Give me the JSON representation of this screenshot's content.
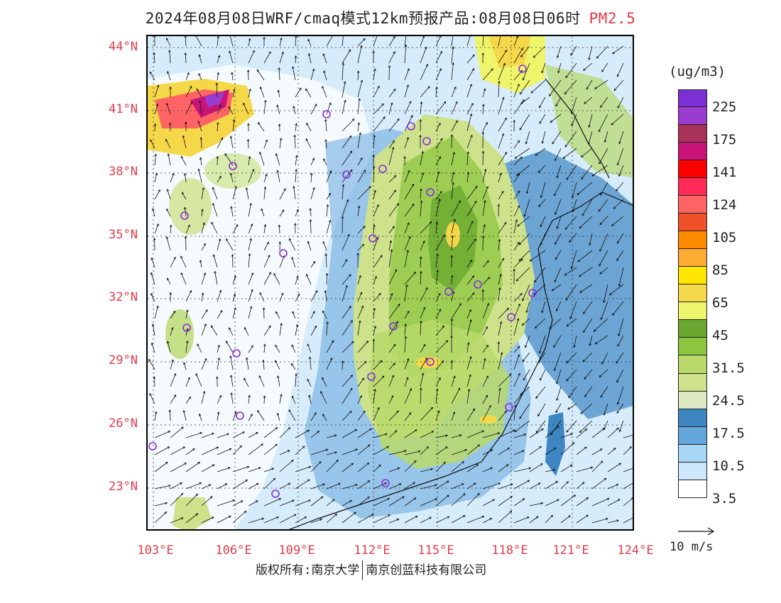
{
  "title": {
    "main": "2024年08月08日WRF/cmaq模式12km预报产品:08月08日06时",
    "species": "PM2.5"
  },
  "axes": {
    "lat_labels": [
      "44°N",
      "41°N",
      "38°N",
      "35°N",
      "32°N",
      "29°N",
      "26°N",
      "23°N"
    ],
    "lon_labels": [
      "103°E",
      "106°E",
      "109°E",
      "112°E",
      "115°E",
      "118°E",
      "121°E",
      "124°E"
    ]
  },
  "colorbar": {
    "unit": "(ug/m3)",
    "labels": [
      "225",
      "175",
      "141",
      "124",
      "105",
      "85",
      "65",
      "45",
      "31.5",
      "24.5",
      "17.5",
      "10.5",
      "3.5"
    ],
    "colors": [
      "#7b2fd4",
      "#9a3ccf",
      "#a8325a",
      "#c81478",
      "#ff0000",
      "#ff2a55",
      "#ff6464",
      "#f0502a",
      "#ff8a00",
      "#ffaa33",
      "#ffe600",
      "#f5d84a",
      "#eef56a",
      "#6aa830",
      "#8cc63f",
      "#b8d96a",
      "#cde28a",
      "#dde9c0",
      "#3e86c2",
      "#64a6dc",
      "#a8d8f5",
      "#cce8fa",
      "#ffffff"
    ]
  },
  "wind_key": {
    "label": "10 m/s"
  },
  "footer": {
    "copyright": "版权所有:南京大学",
    "company": "南京创蓝科技有限公司"
  }
}
